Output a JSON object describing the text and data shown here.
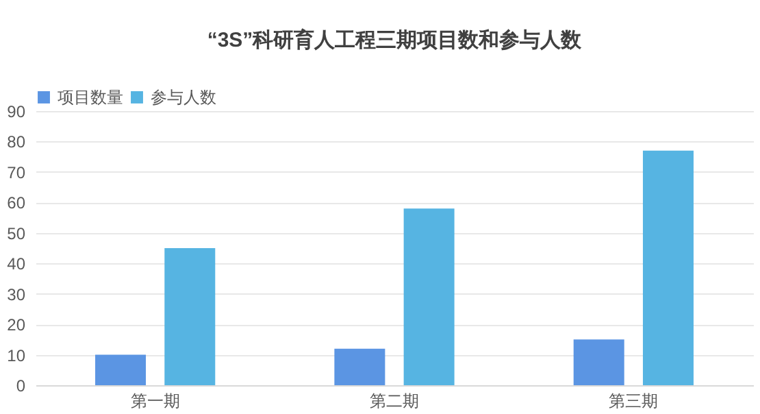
{
  "chart_data": {
    "type": "bar",
    "title": "“3S”科研育人工程三期项目数和参与人数",
    "categories": [
      "第一期",
      "第二期",
      "第三期"
    ],
    "series": [
      {
        "name": "项目数量",
        "color": "#5b95e3",
        "values": [
          10,
          12,
          15
        ]
      },
      {
        "name": "参与人数",
        "color": "#56b4e2",
        "values": [
          45,
          58,
          77
        ]
      }
    ],
    "ylim": [
      0,
      90
    ],
    "yticks": [
      0,
      10,
      20,
      30,
      40,
      50,
      60,
      70,
      80,
      90
    ],
    "grid": "y",
    "legend": "top"
  }
}
